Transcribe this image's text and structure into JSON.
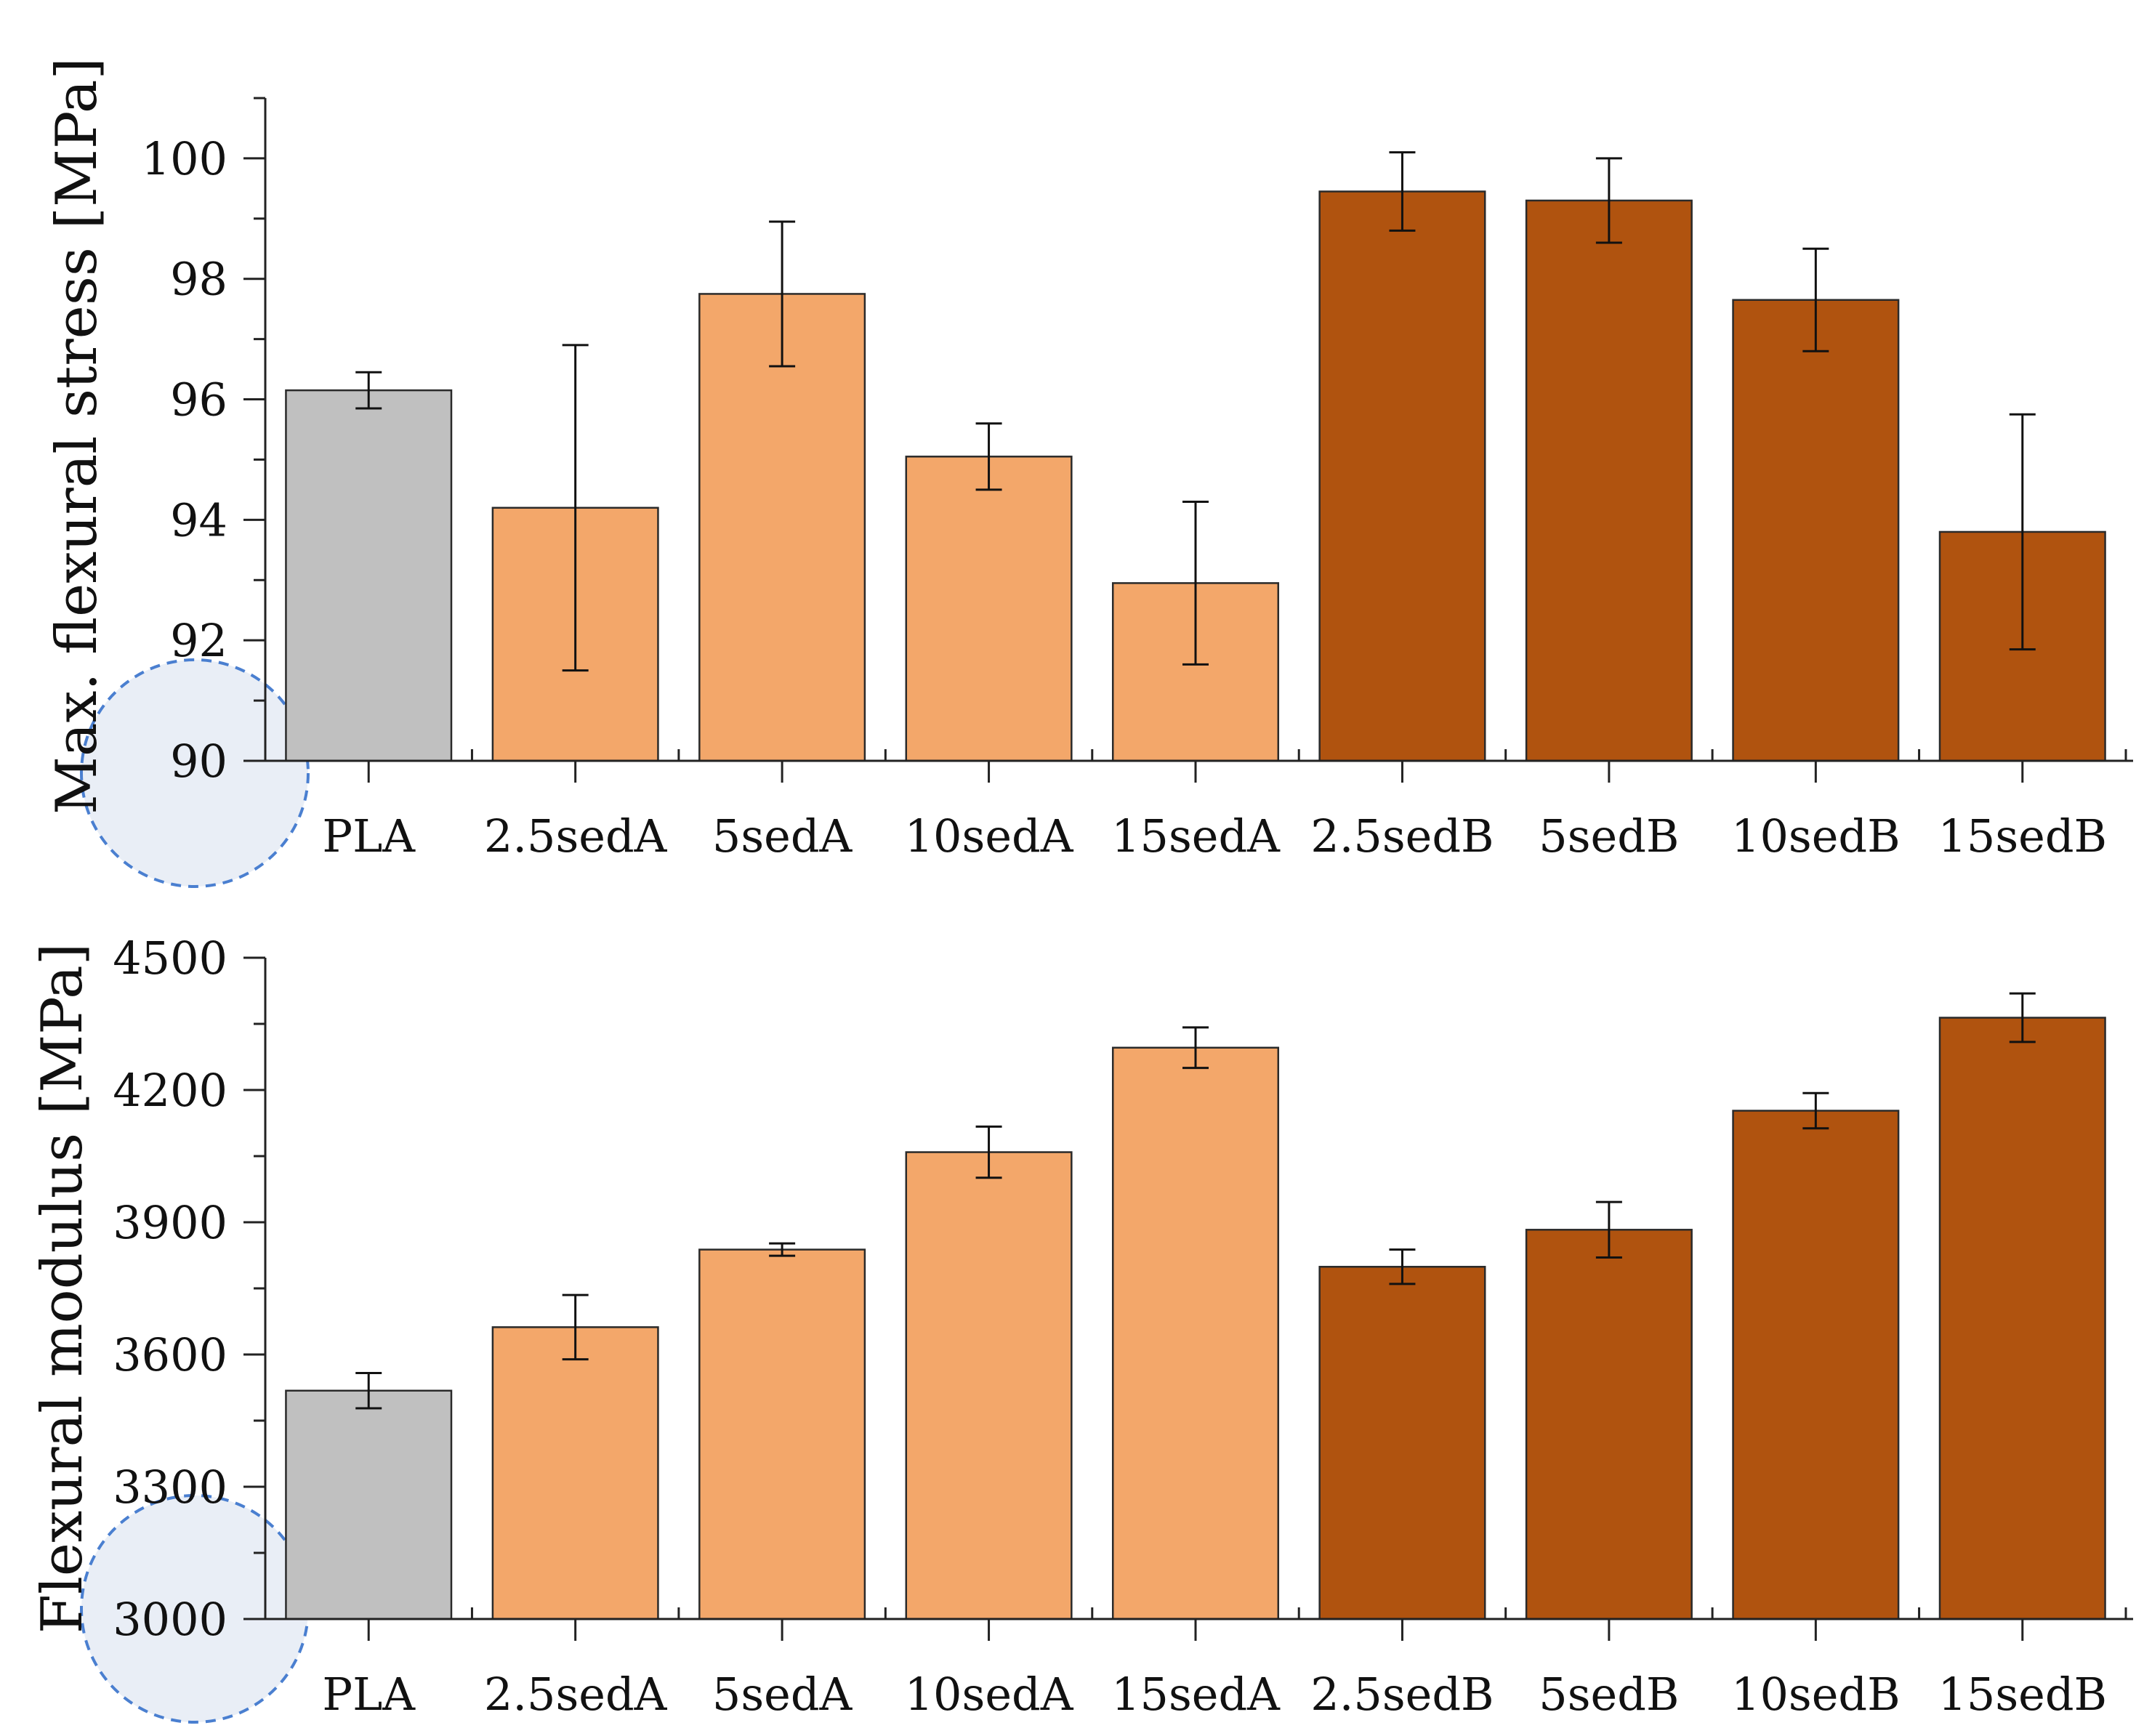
{
  "colors": {
    "pla": "#c0c0c0",
    "sed_a": "#f3a76a",
    "sed_b": "#b0530f",
    "bar_stroke": "#2a2a2a",
    "axis": "#222222",
    "highlight_stroke": "#4a7fd0",
    "highlight_fill": "#e9eef6"
  },
  "chart_data": [
    {
      "type": "bar",
      "ylabel": "Max. flexural stress [MPa]",
      "xlabel": "",
      "ylim": [
        90,
        101
      ],
      "yticks": [
        90,
        92,
        94,
        96,
        98,
        100
      ],
      "categories": [
        "PLA",
        "2.5sedA",
        "5sedA",
        "10sedA",
        "15sedA",
        "2.5sedB",
        "5sedB",
        "10sedB",
        "15sedB"
      ],
      "values": [
        96.15,
        94.2,
        97.75,
        95.05,
        92.95,
        99.45,
        99.3,
        97.65,
        93.8
      ],
      "errors": [
        0.3,
        2.7,
        1.2,
        0.55,
        1.35,
        0.65,
        0.7,
        0.85,
        1.95
      ],
      "groups": [
        "pla",
        "sed_a",
        "sed_a",
        "sed_a",
        "sed_a",
        "sed_b",
        "sed_b",
        "sed_b",
        "sed_b"
      ],
      "grid": false,
      "legend": "none"
    },
    {
      "type": "bar",
      "ylabel": "Flexural modulus [MPa]",
      "xlabel": "",
      "ylim": [
        3000,
        4500
      ],
      "yticks": [
        3000,
        3300,
        3600,
        3900,
        4200,
        4500
      ],
      "categories": [
        "PLA",
        "2.5sedA",
        "5sedA",
        "10sedA",
        "15sedA",
        "2.5sedB",
        "5sedB",
        "10sedB",
        "15sedB"
      ],
      "values": [
        3518,
        3662,
        3838,
        4059,
        4296,
        3799,
        3883,
        4153,
        4364
      ],
      "errors": [
        40,
        73,
        14,
        58,
        46,
        39,
        63,
        40,
        55
      ],
      "groups": [
        "pla",
        "sed_a",
        "sed_a",
        "sed_a",
        "sed_a",
        "sed_b",
        "sed_b",
        "sed_b",
        "sed_b"
      ],
      "grid": false,
      "legend": "none"
    }
  ]
}
